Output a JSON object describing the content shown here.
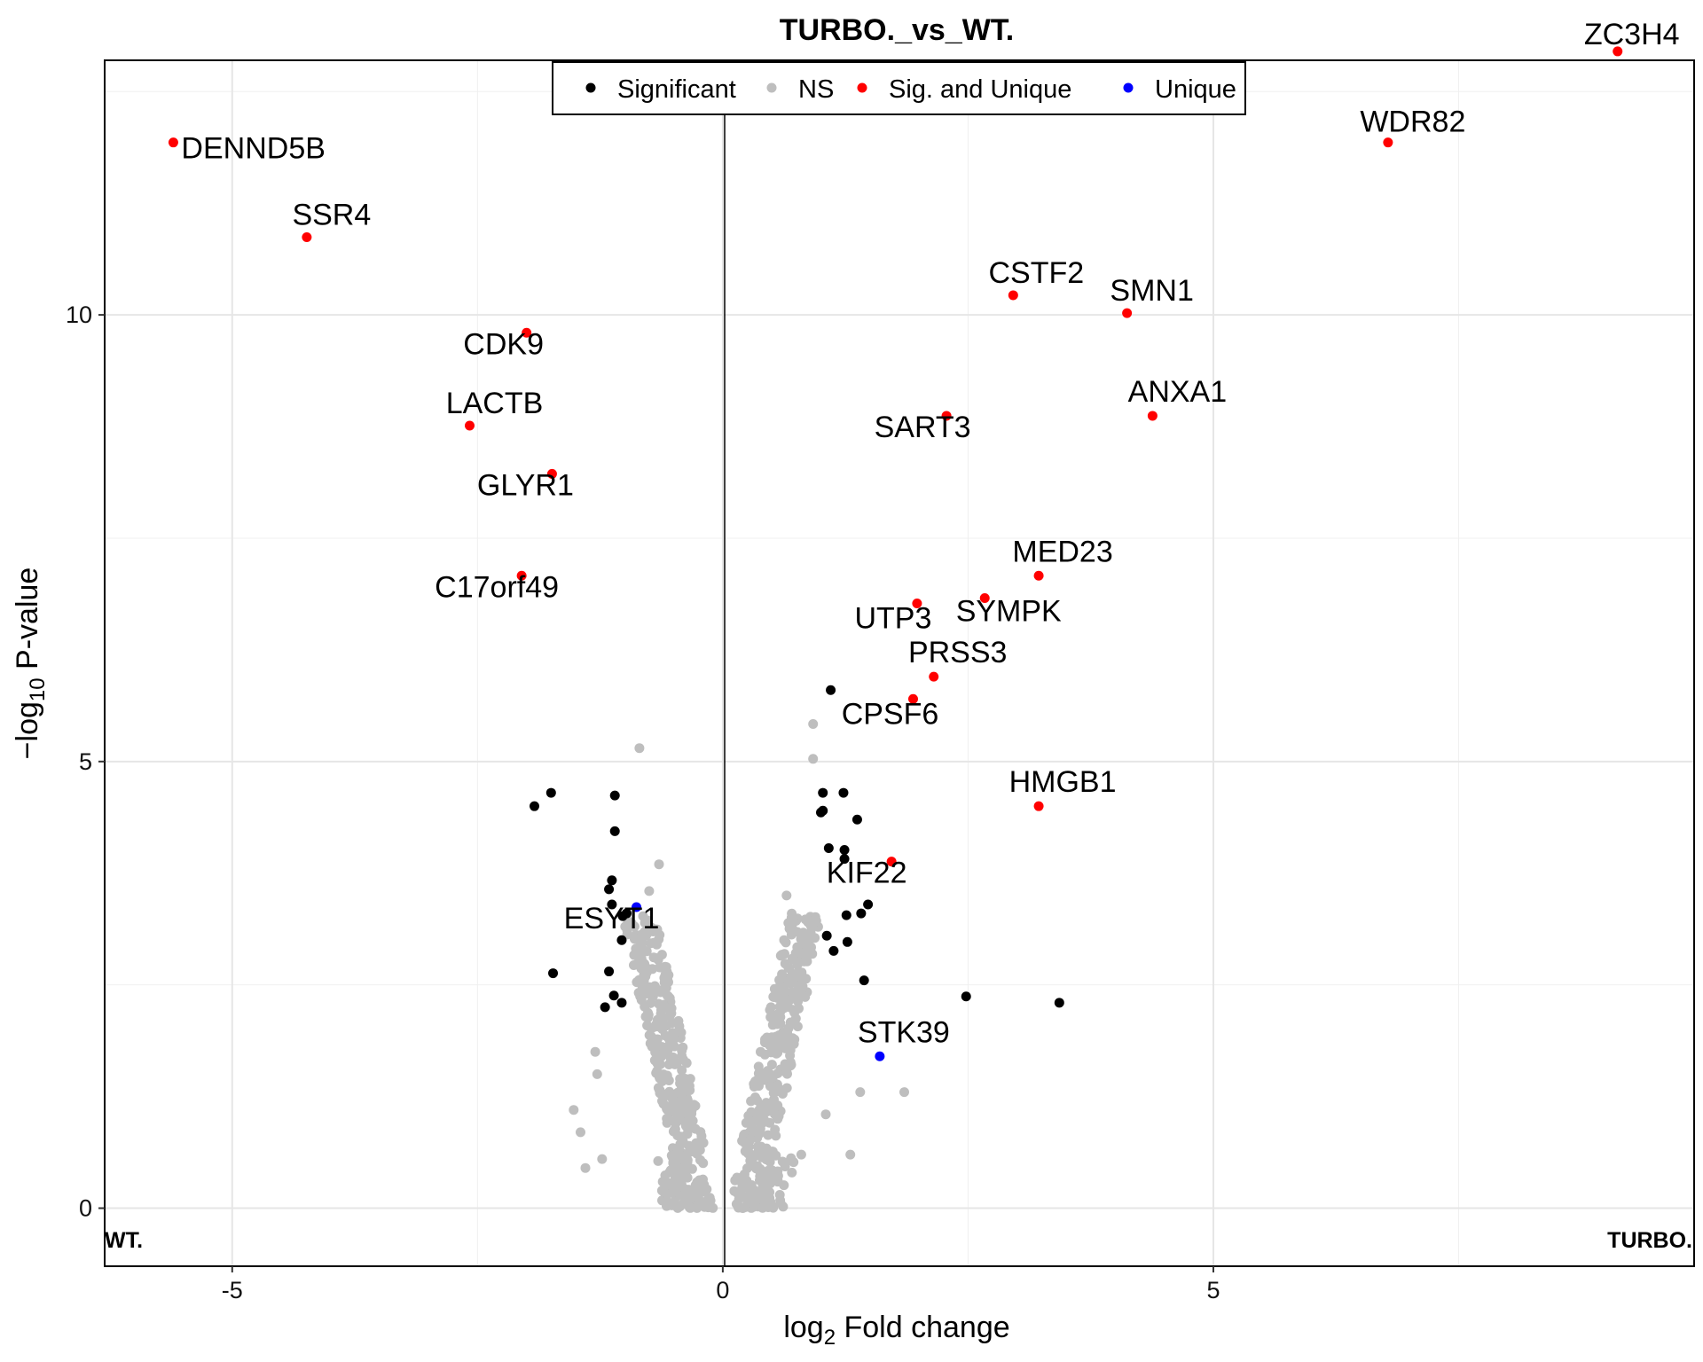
{
  "chart_data": {
    "type": "scatter",
    "title": "TURBO._vs_WT.",
    "xlabel": "log2 Fold change",
    "ylabel": "-log10 P-value",
    "xlim": [
      -6.3,
      9.9
    ],
    "ylim": [
      -0.65,
      12.85
    ],
    "x_ticks": [
      -5,
      0,
      5
    ],
    "y_ticks": [
      0,
      5,
      10
    ],
    "grid": true,
    "legend_position": "top-center",
    "left_group_label": "WT.",
    "right_group_label": "TURBO.",
    "legend": [
      {
        "name": "Significant",
        "color": "#000000"
      },
      {
        "name": "NS",
        "color": "#bebebe"
      },
      {
        "name": "Sig. and Unique",
        "color": "#ff0000"
      },
      {
        "name": "Unique",
        "color": "#0000ff"
      }
    ],
    "series": [
      {
        "name": "Sig. and Unique",
        "color": "#ff0000",
        "points": [
          {
            "x": 9.12,
            "y": 12.95,
            "label": "ZC3H4"
          },
          {
            "x": -5.6,
            "y": 11.93,
            "label": "DENND5B"
          },
          {
            "x": 6.78,
            "y": 11.93,
            "label": "WDR82"
          },
          {
            "x": -4.24,
            "y": 10.87,
            "label": "SSR4"
          },
          {
            "x": 2.96,
            "y": 10.22,
            "label": "CSTF2"
          },
          {
            "x": 4.12,
            "y": 10.02,
            "label": "SMN1"
          },
          {
            "x": -2.0,
            "y": 9.8,
            "label": "CDK9"
          },
          {
            "x": 4.38,
            "y": 8.87,
            "label": "ANXA1"
          },
          {
            "x": 2.28,
            "y": 8.87,
            "label": "SART3"
          },
          {
            "x": -2.58,
            "y": 8.76,
            "label": "LACTB"
          },
          {
            "x": -1.74,
            "y": 8.22,
            "label": "GLYR1"
          },
          {
            "x": -2.05,
            "y": 7.08,
            "label": "C17orf49"
          },
          {
            "x": 3.22,
            "y": 7.08,
            "label": "MED23"
          },
          {
            "x": 2.67,
            "y": 6.83,
            "label": "SYMPK"
          },
          {
            "x": 1.98,
            "y": 6.77,
            "label": "UTP3"
          },
          {
            "x": 2.15,
            "y": 5.95,
            "label": "PRSS3"
          },
          {
            "x": 1.94,
            "y": 5.7,
            "label": "CPSF6"
          },
          {
            "x": 3.22,
            "y": 4.5,
            "label": "HMGB1"
          },
          {
            "x": 1.72,
            "y": 3.88,
            "label": "KIF22"
          }
        ]
      },
      {
        "name": "Unique",
        "color": "#0000ff",
        "points": [
          {
            "x": -0.88,
            "y": 3.37,
            "label": "ESYT1"
          },
          {
            "x": 1.6,
            "y": 1.7,
            "label": "STK39"
          }
        ]
      },
      {
        "name": "Significant",
        "color": "#000000",
        "points": [
          {
            "x": 1.1,
            "y": 5.8
          },
          {
            "x": -1.75,
            "y": 4.65
          },
          {
            "x": -1.92,
            "y": 4.5
          },
          {
            "x": -1.1,
            "y": 4.62
          },
          {
            "x": -1.1,
            "y": 4.22
          },
          {
            "x": 1.02,
            "y": 4.65
          },
          {
            "x": 1.23,
            "y": 4.65
          },
          {
            "x": 1.0,
            "y": 4.43
          },
          {
            "x": 1.02,
            "y": 4.45
          },
          {
            "x": 1.37,
            "y": 4.35
          },
          {
            "x": 1.08,
            "y": 4.03
          },
          {
            "x": 1.24,
            "y": 4.01
          },
          {
            "x": 1.24,
            "y": 3.91
          },
          {
            "x": -1.13,
            "y": 3.67
          },
          {
            "x": -1.16,
            "y": 3.57
          },
          {
            "x": -1.13,
            "y": 3.4
          },
          {
            "x": -1.02,
            "y": 3.27
          },
          {
            "x": -0.98,
            "y": 3.3
          },
          {
            "x": -1.03,
            "y": 3.0
          },
          {
            "x": 1.06,
            "y": 3.05
          },
          {
            "x": 1.26,
            "y": 3.28
          },
          {
            "x": 1.41,
            "y": 3.3
          },
          {
            "x": 1.48,
            "y": 3.4
          },
          {
            "x": 1.27,
            "y": 2.98
          },
          {
            "x": 1.13,
            "y": 2.88
          },
          {
            "x": -1.16,
            "y": 2.65
          },
          {
            "x": -1.73,
            "y": 2.63
          },
          {
            "x": -1.11,
            "y": 2.38
          },
          {
            "x": -1.03,
            "y": 2.3
          },
          {
            "x": -1.2,
            "y": 2.25
          },
          {
            "x": 1.44,
            "y": 2.55
          },
          {
            "x": 2.48,
            "y": 2.37
          },
          {
            "x": 3.43,
            "y": 2.3
          }
        ]
      }
    ]
  }
}
